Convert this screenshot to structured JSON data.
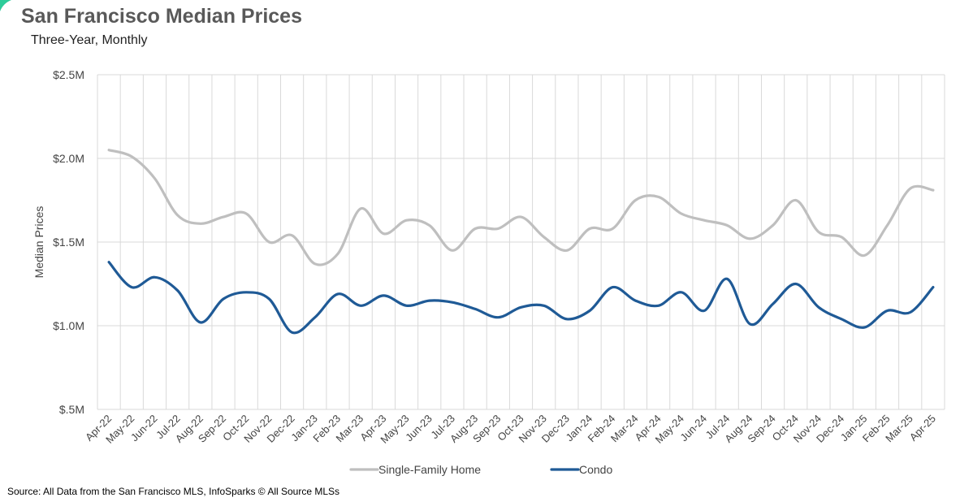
{
  "title": "San Francisco Median Prices",
  "subtitle": "Three-Year, Monthly",
  "source": "Source: All Data from the San Francisco MLS, InfoSparks © All Source MLSs",
  "chart_data": {
    "type": "line",
    "title": "San Francisco Median Prices",
    "subtitle": "Three-Year, Monthly",
    "xlabel": "",
    "ylabel": "Median Prices",
    "ylim": [
      500000,
      2500000
    ],
    "yticks": [
      500000,
      1000000,
      1500000,
      2000000,
      2500000
    ],
    "ytick_labels": [
      "$.5M",
      "$1.0M",
      "$1.5M",
      "$2.0M",
      "$2.5M"
    ],
    "grid": true,
    "legend_position": "bottom",
    "categories": [
      "Apr-22",
      "May-22",
      "Jun-22",
      "Jul-22",
      "Aug-22",
      "Sep-22",
      "Oct-22",
      "Nov-22",
      "Dec-22",
      "Jan-23",
      "Feb-23",
      "Mar-23",
      "Apr-23",
      "May-23",
      "Jun-23",
      "Jul-23",
      "Aug-23",
      "Sep-23",
      "Oct-23",
      "Nov-23",
      "Dec-23",
      "Jan-24",
      "Feb-24",
      "Mar-24",
      "Apr-24",
      "May-24",
      "Jun-24",
      "Jul-24",
      "Aug-24",
      "Sep-24",
      "Oct-24",
      "Nov-24",
      "Dec-24",
      "Jan-25",
      "Feb-25",
      "Mar-25",
      "Apr-25"
    ],
    "series": [
      {
        "name": "Single-Family Home",
        "color": "#BFBFBF",
        "values": [
          2050000,
          2010000,
          1880000,
          1660000,
          1610000,
          1650000,
          1670000,
          1500000,
          1540000,
          1370000,
          1430000,
          1700000,
          1550000,
          1630000,
          1600000,
          1450000,
          1580000,
          1580000,
          1650000,
          1530000,
          1450000,
          1580000,
          1580000,
          1750000,
          1770000,
          1670000,
          1630000,
          1600000,
          1520000,
          1600000,
          1750000,
          1560000,
          1530000,
          1420000,
          1600000,
          1820000,
          1810000
        ]
      },
      {
        "name": "Condo",
        "color": "#1F5A96",
        "values": [
          1380000,
          1230000,
          1290000,
          1210000,
          1020000,
          1160000,
          1200000,
          1160000,
          960000,
          1050000,
          1190000,
          1120000,
          1180000,
          1120000,
          1150000,
          1140000,
          1100000,
          1050000,
          1110000,
          1120000,
          1040000,
          1090000,
          1230000,
          1150000,
          1120000,
          1200000,
          1090000,
          1280000,
          1010000,
          1130000,
          1250000,
          1110000,
          1040000,
          990000,
          1090000,
          1080000,
          1230000
        ]
      }
    ]
  }
}
